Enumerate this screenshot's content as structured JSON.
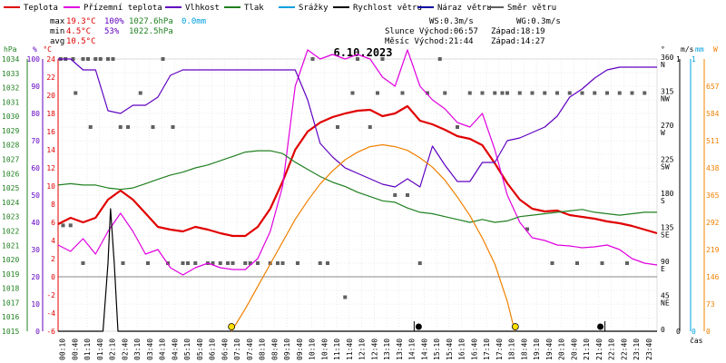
{
  "legend": [
    {
      "label": "Teplota",
      "color": "#e00000"
    },
    {
      "label": "Přízemní teplota",
      "color": "#e000e0"
    },
    {
      "label": "Vlhkost",
      "color": "#6000c0"
    },
    {
      "label": "Tlak",
      "color": "#208020"
    },
    {
      "label": "Srážky",
      "color": "#00a0e0"
    },
    {
      "label": "Rychlost větru",
      "color": "#000000"
    },
    {
      "label": "Náraz větru",
      "color": "#0000a0"
    },
    {
      "label": "Směr větru",
      "color": "#606060"
    }
  ],
  "stats": {
    "max_label": "max",
    "max_temp": "19.3°C",
    "max_hum": "100%",
    "max_press": "1027.6hPa",
    "max_rain": "0.0mm",
    "min_label": "min",
    "min_temp": "4.5°C",
    "min_hum": "53%",
    "min_press": "1022.5hPa",
    "avg_label": "avg",
    "avg_temp": "10.5°C"
  },
  "wind_info": {
    "ws": "WS:0.3m/s",
    "wg": "WG:0.3m/s",
    "sun": "Slunce Východ:06:57",
    "sun_set": "Západ:18:19",
    "moon": "Měsíc  Východ:21:44",
    "moon_set": "Západ:14:27"
  },
  "chart_data": {
    "type": "line",
    "title": "6.10.2023",
    "xlabel": "čas",
    "x_ticks": [
      "00:10",
      "00:40",
      "01:10",
      "01:40",
      "02:10",
      "02:40",
      "03:10",
      "03:40",
      "04:10",
      "04:40",
      "05:10",
      "05:40",
      "06:10",
      "06:40",
      "07:10",
      "07:40",
      "08:10",
      "08:40",
      "09:10",
      "09:40",
      "10:10",
      "10:40",
      "11:10",
      "11:40",
      "12:10",
      "12:40",
      "13:10",
      "13:40",
      "14:10",
      "14:40",
      "15:10",
      "15:40",
      "16:10",
      "16:40",
      "17:10",
      "17:40",
      "18:10",
      "18:40",
      "19:10",
      "19:40",
      "20:10",
      "20:40",
      "21:10",
      "21:40",
      "22:10",
      "22:40",
      "23:10",
      "23:40"
    ],
    "axis_units": {
      "hpa": "hPa",
      "pct": "%",
      "temp": "°C",
      "dir": "°",
      "ms": "m/s",
      "mm": "mm",
      "w": "W"
    },
    "pressure_ticks": [
      1034,
      1033,
      1032,
      1031,
      1030,
      1029,
      1028,
      1027,
      1026,
      1025,
      1024,
      1023,
      1022,
      1021,
      1020,
      1019,
      1018,
      1017,
      1016,
      1015
    ],
    "humidity_ticks": [
      100,
      90,
      80,
      70,
      60,
      50,
      40,
      30,
      20,
      10,
      0
    ],
    "temp_ticks": [
      24,
      22,
      20,
      18,
      16,
      14,
      12,
      10,
      8,
      6,
      4,
      2,
      0,
      -2,
      -4,
      -6
    ],
    "dir_ticks": [
      {
        "deg": 360,
        "name": "N"
      },
      {
        "deg": 315,
        "name": "NW"
      },
      {
        "deg": 270,
        "name": "W"
      },
      {
        "deg": 225,
        "name": "SW"
      },
      {
        "deg": 180,
        "name": "S"
      },
      {
        "deg": 135,
        "name": "SE"
      },
      {
        "deg": 90,
        "name": "E"
      },
      {
        "deg": 45,
        "name": "NE"
      },
      {
        "deg": 0,
        "name": ""
      }
    ],
    "ms_ticks": [
      {
        "v": 1,
        "label": "1"
      },
      {
        "v": 0,
        "label": "0"
      }
    ],
    "mm_ticks": [
      {
        "v": 1,
        "label": "1"
      },
      {
        "v": 0,
        "label": "0"
      }
    ],
    "solar_ticks": [
      657,
      584,
      511,
      438,
      365,
      292,
      219,
      146,
      73,
      0
    ],
    "temp_range": [
      -6,
      24
    ],
    "series": [
      {
        "name": "Teplota",
        "color": "#e00000",
        "axis": "temp",
        "t": [
          0,
          0.5,
          1,
          1.5,
          2,
          2.5,
          3,
          3.5,
          4,
          4.5,
          5,
          5.5,
          6,
          6.5,
          7,
          7.5,
          8,
          8.5,
          9,
          9.5,
          10,
          10.5,
          11,
          11.5,
          12,
          12.5,
          13,
          13.5,
          14,
          14.5,
          15,
          15.5,
          16,
          16.5,
          17,
          17.5,
          18,
          18.5,
          19,
          19.5,
          20,
          20.5,
          21,
          21.5,
          22,
          22.5,
          23,
          23.5,
          24
        ],
        "v": [
          5.8,
          6.5,
          6.0,
          6.5,
          8.5,
          9.5,
          8.5,
          7.0,
          5.5,
          5.2,
          5.0,
          5.5,
          5.2,
          4.8,
          4.5,
          4.5,
          5.5,
          7.5,
          10.5,
          14.0,
          16.0,
          17.0,
          17.6,
          18.0,
          18.3,
          18.4,
          17.7,
          18.0,
          18.8,
          17.2,
          16.8,
          16.2,
          15.5,
          15.2,
          14.5,
          12.5,
          10.3,
          8.5,
          7.5,
          7.2,
          7.3,
          6.8,
          6.6,
          6.4,
          6.1,
          5.9,
          5.6,
          5.2,
          4.8
        ]
      },
      {
        "name": "Přízemní teplota",
        "color": "#e000e0",
        "axis": "temp",
        "t": [
          0,
          0.5,
          1,
          1.5,
          2,
          2.5,
          3,
          3.5,
          4,
          4.5,
          5,
          5.5,
          6,
          6.5,
          7,
          7.5,
          8,
          8.5,
          9,
          9.5,
          10,
          10.5,
          11,
          11.5,
          12,
          12.5,
          13,
          13.5,
          14,
          14.5,
          15,
          15.5,
          16,
          16.5,
          17,
          17.5,
          18,
          18.5,
          19,
          19.5,
          20,
          20.5,
          21,
          21.5,
          22,
          22.5,
          23,
          23.5,
          24
        ],
        "v": [
          3.5,
          2.8,
          4.2,
          2.5,
          5.0,
          7.0,
          5.0,
          2.5,
          3.0,
          1.0,
          0.2,
          1.0,
          1.5,
          1.0,
          0.8,
          0.8,
          2.0,
          5.0,
          10.0,
          21.0,
          25.0,
          24.0,
          24.5,
          24.0,
          24.5,
          24.0,
          22.0,
          21.0,
          25.0,
          21.0,
          19.5,
          18.5,
          17.0,
          16.5,
          18.0,
          14.0,
          9.0,
          6.0,
          4.3,
          4.0,
          3.5,
          3.4,
          3.2,
          3.3,
          3.5,
          3.0,
          2.0,
          1.5,
          1.3
        ]
      },
      {
        "name": "Vlhkost",
        "color": "#6000c0",
        "axis": "pct",
        "t": [
          0,
          0.5,
          1,
          1.5,
          2,
          2.5,
          3,
          3.5,
          4,
          4.5,
          5,
          5.5,
          6,
          6.5,
          7,
          7.5,
          8,
          8.5,
          9,
          9.5,
          10,
          10.5,
          11,
          11.5,
          12,
          12.5,
          13,
          13.5,
          14,
          14.5,
          15,
          15.5,
          16,
          16.5,
          17,
          17.5,
          18,
          18.5,
          19,
          19.5,
          20,
          20.5,
          21,
          21.5,
          22,
          22.5,
          23,
          23.5,
          24
        ],
        "v": [
          100,
          100,
          96,
          96,
          81,
          80,
          83,
          83,
          86,
          94,
          96,
          96,
          96,
          96,
          96,
          96,
          96,
          96,
          96,
          96,
          85,
          69,
          64,
          60,
          58,
          56,
          54,
          53,
          56,
          53,
          68,
          61,
          55,
          55,
          62,
          62,
          70,
          71,
          73,
          75,
          79,
          86,
          89,
          93,
          96,
          97,
          97,
          97,
          97
        ]
      },
      {
        "name": "Tlak",
        "color": "#208020",
        "axis": "hpa",
        "t": [
          0,
          0.5,
          1,
          1.5,
          2,
          2.5,
          3,
          3.5,
          4,
          4.5,
          5,
          5.5,
          6,
          6.5,
          7,
          7.5,
          8,
          8.5,
          9,
          9.5,
          10,
          10.5,
          11,
          11.5,
          12,
          12.5,
          13,
          13.5,
          14,
          14.5,
          15,
          15.5,
          16,
          16.5,
          17,
          17.5,
          18,
          18.5,
          19,
          19.5,
          20,
          20.5,
          21,
          21.5,
          22,
          22.5,
          23,
          23.5,
          24
        ],
        "v": [
          1025.2,
          1025.3,
          1025.2,
          1025.2,
          1025.0,
          1024.9,
          1025.0,
          1025.3,
          1025.6,
          1025.9,
          1026.1,
          1026.4,
          1026.6,
          1026.9,
          1027.2,
          1027.5,
          1027.6,
          1027.6,
          1027.4,
          1026.8,
          1026.3,
          1025.8,
          1025.4,
          1025.1,
          1024.7,
          1024.4,
          1024.1,
          1024.0,
          1023.6,
          1023.3,
          1023.2,
          1023.0,
          1022.8,
          1022.6,
          1022.8,
          1022.6,
          1022.7,
          1023.0,
          1023.1,
          1023.2,
          1023.3,
          1023.4,
          1023.5,
          1023.3,
          1023.2,
          1023.1,
          1023.2,
          1023.3,
          1023.3
        ]
      },
      {
        "name": "Rychlost větru",
        "color": "#000000",
        "axis": "ms",
        "t": [
          0,
          1.8,
          2.0,
          2.1,
          2.25,
          2.4,
          24
        ],
        "v": [
          0,
          0,
          0.25,
          0.45,
          0.25,
          0,
          0
        ]
      },
      {
        "name": "Sluneční záření",
        "color": "#f08000",
        "axis": "w",
        "t": [
          6.95,
          7.5,
          8,
          8.5,
          9,
          9.5,
          10,
          10.5,
          11,
          11.5,
          12,
          12.5,
          13,
          13.5,
          14,
          14.5,
          15,
          15.5,
          16,
          16.5,
          17,
          17.5,
          18,
          18.3
        ],
        "v": [
          0,
          60,
          120,
          180,
          240,
          300,
          350,
          395,
          430,
          460,
          480,
          495,
          500,
          495,
          485,
          465,
          440,
          405,
          360,
          310,
          250,
          180,
          80,
          0
        ]
      }
    ],
    "wind_direction": {
      "name": "Směr větru",
      "color": "#606060",
      "axis": "dir",
      "t": [
        0.3,
        0.6,
        1.0,
        1.2,
        1.5,
        1.7,
        2.0,
        2.2,
        0.2,
        0.5,
        1.0,
        2.5,
        2.8,
        3.3,
        3.8,
        4.2,
        4.6,
        5.0,
        5.5,
        6.0,
        6.5,
        7.0,
        7.5,
        8.0,
        8.5,
        9.0,
        10.2,
        10.5,
        11.2,
        11.5,
        12.0,
        12.5,
        13.0,
        13.5,
        14.0,
        14.5,
        15.5,
        16.0,
        16.5,
        17.0,
        17.5,
        18.0,
        18.5,
        19.0,
        19.5,
        20.0,
        20.5,
        21.0,
        21.5,
        22.0,
        22.5,
        23.0,
        23.5,
        0.1,
        0.7,
        1.3,
        2.6,
        3.6,
        4.4,
        5.2,
        6.2,
        6.8,
        7.7,
        8.8,
        9.6,
        10.8,
        11.8,
        12.8,
        13.8,
        14.8,
        15.3,
        17.8,
        18.8,
        19.8,
        20.8,
        21.8,
        22.8
      ],
      "v": [
        360,
        360,
        360,
        360,
        360,
        360,
        360,
        360,
        140,
        140,
        90,
        270,
        270,
        315,
        270,
        360,
        270,
        90,
        90,
        90,
        90,
        90,
        90,
        90,
        90,
        90,
        360,
        90,
        270,
        45,
        360,
        270,
        360,
        180,
        180,
        90,
        315,
        270,
        315,
        315,
        315,
        315,
        315,
        315,
        315,
        315,
        315,
        315,
        315,
        315,
        315,
        315,
        315,
        360,
        315,
        270,
        90,
        90,
        90,
        90,
        90,
        90,
        90,
        90,
        90,
        90,
        315,
        315,
        315,
        315,
        360,
        315,
        135,
        90,
        90,
        90,
        90
      ]
    },
    "events": [
      {
        "t": 6.95,
        "kind": "sunrise"
      },
      {
        "t": 18.32,
        "kind": "sunset"
      },
      {
        "t": 14.45,
        "kind": "moonset"
      },
      {
        "t": 21.73,
        "kind": "moonrise"
      }
    ]
  }
}
